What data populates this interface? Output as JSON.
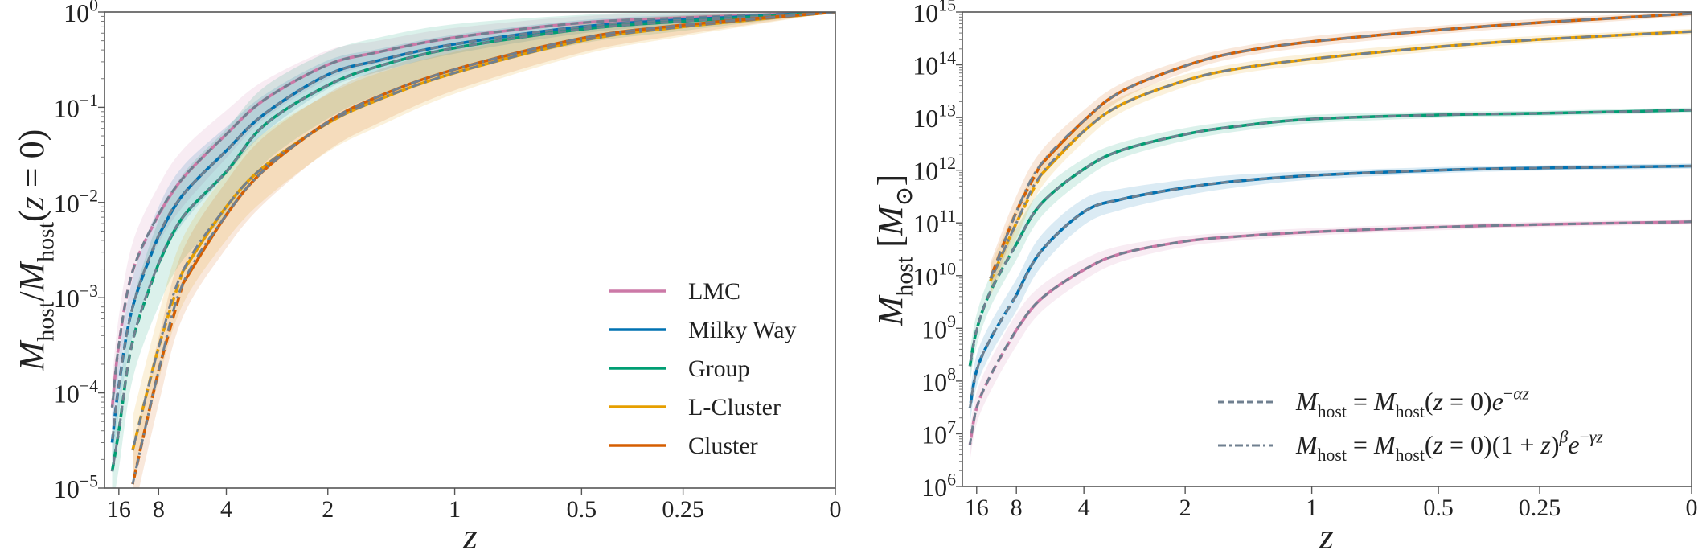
{
  "chart_data": [
    {
      "panel": "left",
      "type": "line",
      "title": "",
      "xlabel": "z",
      "ylabel": "M_{host}/M_{host}(z = 0)",
      "xscale": "scale factor 1/(1+z), reversed",
      "yscale": "log",
      "xlim": [
        24,
        0
      ],
      "ylim": [
        1e-05,
        1
      ],
      "grid": false,
      "xticks": [
        16,
        8,
        4,
        2,
        1,
        0.5,
        0.25,
        0
      ],
      "xtick_labels": [
        "16",
        "8",
        "4",
        "2",
        "1",
        "0.5",
        "0.25",
        "0"
      ],
      "yticks": [
        1e-05,
        0.0001,
        0.001,
        0.01,
        0.1,
        1
      ],
      "ytick_labels": [
        "10^{−5}",
        "10^{−4}",
        "10^{−3}",
        "10^{−2}",
        "10^{−1}",
        "10^{0}"
      ],
      "legend": {
        "placement": "lower-right",
        "entries": [
          "LMC",
          "Milky Way",
          "Group",
          "L-Cluster",
          "Cluster"
        ]
      },
      "z": [
        0,
        0.25,
        0.5,
        1,
        1.5,
        2,
        3,
        4,
        6,
        8,
        12,
        16,
        19
      ],
      "series": [
        {
          "name": "LMC",
          "color": "#cc79a7",
          "solid_until": 11,
          "fit_style": "dashed",
          "values": [
            1,
            0.87,
            0.77,
            0.54,
            0.38,
            0.28,
            0.12,
            0.052,
            0.018,
            0.0075,
            0.0019,
            0.00032,
            7e-05
          ],
          "band_dex": [
            0,
            0.05,
            0.07,
            0.1,
            0.12,
            0.15,
            0.2,
            0.25,
            0.3,
            0.3,
            0.3,
            0.3,
            0.3
          ]
        },
        {
          "name": "Milky Way",
          "color": "#0072b2",
          "solid_until": 9,
          "fit_style": "dashed",
          "values": [
            1,
            0.83,
            0.7,
            0.46,
            0.31,
            0.22,
            0.085,
            0.035,
            0.012,
            0.0045,
            0.0008,
            0.00012,
            3e-05
          ],
          "band_dex": [
            0,
            0.05,
            0.07,
            0.1,
            0.12,
            0.15,
            0.2,
            0.25,
            0.3,
            0.3,
            0.3,
            0.3,
            0.3
          ]
        },
        {
          "name": "Group",
          "color": "#009e73",
          "solid_until": 8.5,
          "fit_style": "dashed",
          "values": [
            1,
            0.8,
            0.66,
            0.42,
            0.27,
            0.17,
            0.065,
            0.021,
            0.007,
            0.0023,
            0.00035,
            4e-05,
            1.5e-05
          ],
          "band_dex": [
            0,
            0.1,
            0.15,
            0.25,
            0.3,
            0.35,
            0.4,
            0.45,
            0.45,
            0.45,
            0.4,
            0.4,
            0.4
          ]
        },
        {
          "name": "L-Cluster",
          "color": "#e69f00",
          "solid_until": 7.5,
          "fit_style": "dashdot",
          "values": [
            1,
            0.7,
            0.5,
            0.23,
            0.12,
            0.068,
            0.024,
            0.009,
            0.0019,
            0.0003,
            2.5e-05,
            null,
            null
          ],
          "band_dex": [
            0,
            0.1,
            0.15,
            0.22,
            0.28,
            0.3,
            0.35,
            0.35,
            0.35,
            0.35,
            0.35,
            null,
            null
          ]
        },
        {
          "name": "Cluster",
          "color": "#d55e00",
          "solid_until": 7,
          "fit_style": "dashdot",
          "values": [
            1,
            0.73,
            0.53,
            0.25,
            0.13,
            0.07,
            0.022,
            0.0074,
            0.0014,
            0.00017,
            1.1e-05,
            null,
            null
          ],
          "band_dex": [
            0,
            0.1,
            0.15,
            0.22,
            0.28,
            0.3,
            0.35,
            0.35,
            0.35,
            0.35,
            0.35,
            null,
            null
          ]
        }
      ]
    },
    {
      "panel": "right",
      "type": "line",
      "title": "",
      "xlabel": "z",
      "ylabel": "M_{host} [M_{⊙}]",
      "xscale": "scale factor 1/(1+z), reversed",
      "yscale": "log",
      "xlim": [
        24,
        0
      ],
      "ylim": [
        1000000.0,
        1000000000000000.0
      ],
      "grid": false,
      "xticks": [
        16,
        8,
        4,
        2,
        1,
        0.5,
        0.25,
        0
      ],
      "xtick_labels": [
        "16",
        "8",
        "4",
        "2",
        "1",
        "0.5",
        "0.25",
        "0"
      ],
      "yticks": [
        1000000.0,
        10000000.0,
        100000000.0,
        1000000000.0,
        10000000000.0,
        100000000000.0,
        1000000000000.0,
        10000000000000.0,
        100000000000000.0,
        1000000000000000.0
      ],
      "ytick_labels": [
        "10^{6}",
        "10^{7}",
        "10^{8}",
        "10^{9}",
        "10^{10}",
        "10^{11}",
        "10^{12}",
        "10^{13}",
        "10^{14}",
        "10^{15}"
      ],
      "legend": {
        "placement": "lower-right",
        "entries": [
          {
            "label": "M_{host} = M_{host}(z = 0)e^{−αz}",
            "style": "dashed",
            "color": "#708090"
          },
          {
            "label": "M_{host} = M_{host}(z = 0)(1 + z)^{β}e^{−γz}",
            "style": "dashdot",
            "color": "#708090"
          }
        ]
      },
      "z": [
        0,
        0.25,
        0.5,
        1,
        1.5,
        2,
        3,
        4,
        6,
        8,
        12,
        16,
        19
      ],
      "series": [
        {
          "name": "LMC",
          "color": "#cc79a7",
          "solid_until": 11,
          "fit_style": "dashed",
          "values": [
            105000000000.0,
            93300000000.0,
            83200000000.0,
            67600000000.0,
            55000000000.0,
            44700000000.0,
            26300000000.0,
            12900000000.0,
            3550000000.0,
            933000000.0,
            126000000.0,
            30900000.0,
            6170000.0
          ],
          "band_dex": [
            0.05,
            0.05,
            0.06,
            0.07,
            0.08,
            0.1,
            0.15,
            0.2,
            0.25,
            0.3,
            0.3,
            0.3,
            0.3
          ]
        },
        {
          "name": "Milky Way",
          "color": "#0072b2",
          "solid_until": 9,
          "fit_style": "dashed",
          "values": [
            1200000000000.0,
            1100000000000.0,
            1000000000000.0,
            794000000000.0,
            617000000000.0,
            468000000000.0,
            282000000000.0,
            162000000000.0,
            28200000000.0,
            4270000000.0,
            631000000.0,
            158000000.0,
            30900000.0
          ],
          "band_dex": [
            0.05,
            0.05,
            0.06,
            0.08,
            0.12,
            0.15,
            0.2,
            0.25,
            0.3,
            0.3,
            0.3,
            0.3,
            0.3
          ]
        },
        {
          "name": "Group",
          "color": "#009e73",
          "solid_until": 8,
          "fit_style": "dashed",
          "values": [
            13800000000000.0,
            12000000000000.0,
            11200000000000.0,
            9330000000000.0,
            6760000000000.0,
            4790000000000.0,
            2400000000000.0,
            1050000000000.0,
            224000000000.0,
            39800000000.0,
            5010000000.0,
            933000000.0,
            191000000.0
          ],
          "band_dex": [
            0.05,
            0.05,
            0.06,
            0.08,
            0.1,
            0.12,
            0.15,
            0.2,
            0.25,
            0.3,
            0.3,
            0.3,
            0.3
          ]
        },
        {
          "name": "L-Cluster",
          "color": "#e69f00",
          "solid_until": 7.5,
          "fit_style": "dashdot",
          "values": [
            427000000000000.0,
            302000000000000.0,
            219000000000000.0,
            129000000000000.0,
            83200000000000.0,
            50100000000000.0,
            17800000000000.0,
            5500000000000.0,
            794000000000.0,
            100000000000.0,
            7940000000.0,
            null,
            null
          ],
          "band_dex": [
            0.05,
            0.07,
            0.08,
            0.1,
            0.1,
            0.12,
            0.15,
            0.2,
            0.25,
            0.3,
            0.3,
            null,
            null
          ]
        },
        {
          "name": "Cluster",
          "color": "#d55e00",
          "solid_until": 7,
          "fit_style": "dashdot",
          "values": [
            933000000000000.0,
            631000000000000.0,
            457000000000000.0,
            275000000000000.0,
            170000000000000.0,
            95500000000000.0,
            31600000000000.0,
            8710000000000.0,
            1260000000000.0,
            162000000000.0,
            8910000000.0,
            null,
            null
          ],
          "band_dex": [
            0.05,
            0.07,
            0.08,
            0.1,
            0.1,
            0.12,
            0.15,
            0.2,
            0.25,
            0.3,
            0.3,
            null,
            null
          ]
        }
      ]
    }
  ],
  "fit_color": "#708090"
}
